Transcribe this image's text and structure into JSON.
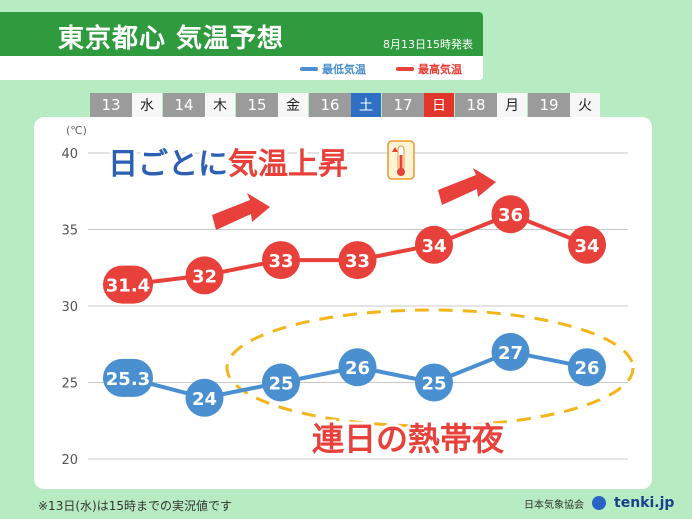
{
  "header": {
    "title": "東京都心 気温予想",
    "issued": "8月13日15時発表",
    "legend_low": "最低気温",
    "legend_high": "最高気温"
  },
  "colors": {
    "low": "#4a8fd0",
    "high": "#e8403a",
    "header_green": "#2f9b3e",
    "background": "#b7ecc2",
    "ellipse": "#f2b51a"
  },
  "days": [
    {
      "num": "13",
      "wd": "水",
      "type": "weekday"
    },
    {
      "num": "14",
      "wd": "木",
      "type": "weekday"
    },
    {
      "num": "15",
      "wd": "金",
      "type": "weekday"
    },
    {
      "num": "16",
      "wd": "土",
      "type": "sat"
    },
    {
      "num": "17",
      "wd": "日",
      "type": "sun"
    },
    {
      "num": "18",
      "wd": "月",
      "type": "weekday"
    },
    {
      "num": "19",
      "wd": "火",
      "type": "weekday"
    }
  ],
  "chart_data": {
    "type": "line",
    "categories": [
      "13",
      "14",
      "15",
      "16",
      "17",
      "18",
      "19"
    ],
    "series": [
      {
        "name": "最高気温",
        "values": [
          31.4,
          32,
          33,
          33,
          34,
          36,
          34
        ],
        "labels": [
          "31.4",
          "32",
          "33",
          "33",
          "34",
          "36",
          "34"
        ]
      },
      {
        "name": "最低気温",
        "values": [
          25.3,
          24,
          25,
          26,
          25,
          27,
          26
        ],
        "labels": [
          "25.3",
          "24",
          "25",
          "26",
          "25",
          "27",
          "26"
        ]
      }
    ],
    "ylabel": "(℃)",
    "ylim": [
      20,
      40
    ],
    "yticks": [
      "20",
      "25",
      "30",
      "35",
      "40"
    ],
    "grid": true
  },
  "annotations": {
    "rising": "日ごとに気温上昇",
    "rising_prefix": "日ごとに",
    "rising_suffix": "気温上昇",
    "tropical_nights": "連日の熱帯夜"
  },
  "footnote": "※13日(水)は15時までの実況値です",
  "source": {
    "org": "日本気象協会",
    "logo": "tenki.jp"
  }
}
